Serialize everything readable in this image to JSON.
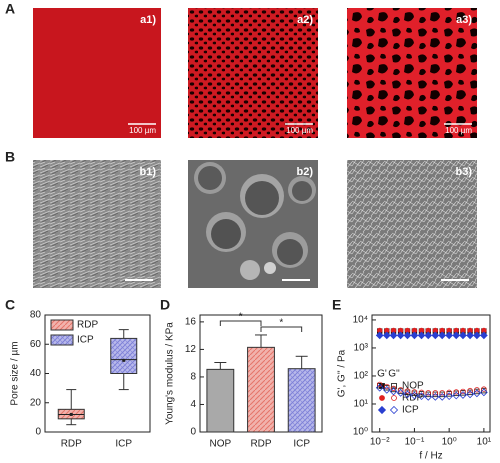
{
  "figure": {
    "panel_labels": [
      "A",
      "B"
    ],
    "images": [
      {
        "label": "a1)",
        "scale": "100 µm"
      },
      {
        "label": "a2)",
        "scale": "100 µm"
      },
      {
        "label": "a3)",
        "scale": "100 µm"
      },
      {
        "label": "b1)"
      },
      {
        "label": "b2)"
      },
      {
        "label": "b3)"
      }
    ]
  },
  "chart_data": [
    {
      "type": "box",
      "panel_label": "C",
      "ylabel": "Pore size / µm",
      "categories": [
        "RDP",
        "ICP"
      ],
      "colors": [
        "#e57368",
        "#7d80d8"
      ],
      "boxes": [
        {
          "min": 5,
          "q1": 9,
          "median": 12,
          "q3": 15.5,
          "max": 29,
          "mean": 12
        },
        {
          "min": 29,
          "q1": 40,
          "median": 49.5,
          "q3": 64,
          "max": 70,
          "mean": 49
        }
      ],
      "ylim": [
        0,
        80
      ],
      "yticks": [
        0,
        20,
        40,
        60,
        80
      ],
      "legend": "top-left"
    },
    {
      "type": "bar",
      "panel_label": "D",
      "ylabel": "Young's modulus / KPa",
      "categories": [
        "NOP",
        "RDP",
        "ICP"
      ],
      "colors": [
        "#a9a9a9",
        "#e57368",
        "#7d80d8"
      ],
      "values": [
        9.1,
        12.3,
        9.2
      ],
      "errors": [
        1.0,
        1.8,
        1.8
      ],
      "annotations": [
        "*",
        "*"
      ],
      "ylim": [
        0,
        17
      ],
      "yticks": [
        0,
        4,
        8,
        12,
        16
      ]
    },
    {
      "type": "scatter",
      "panel_label": "E",
      "ylabel": "G', G'' / Pa",
      "xlabel": "f / Hz",
      "log_x": true,
      "log_y": true,
      "legend_headers": [
        "G'",
        "G''"
      ],
      "x": [
        0.01,
        0.016,
        0.025,
        0.04,
        0.063,
        0.1,
        0.16,
        0.25,
        0.4,
        0.63,
        1,
        1.6,
        2.5,
        4,
        6.3,
        10
      ],
      "series": [
        {
          "name": "NOP",
          "color": "#111111",
          "marker": "square",
          "storage_values": [
            4000,
            4000,
            4000,
            4000,
            4000,
            4000,
            4000,
            4000,
            4000,
            4000,
            4000,
            4000,
            4000,
            4000,
            4000,
            4000
          ],
          "loss_values": [
            45,
            38,
            33,
            29,
            26,
            24,
            23,
            22,
            22,
            22,
            23,
            24,
            25,
            26,
            28,
            30
          ]
        },
        {
          "name": "RDP",
          "color": "#e02020",
          "marker": "circle",
          "storage_values": [
            4200,
            4200,
            4200,
            4200,
            4200,
            4200,
            4200,
            4200,
            4200,
            4200,
            4200,
            4200,
            4200,
            4200,
            4200,
            4200
          ],
          "loss_values": [
            50,
            42,
            36,
            32,
            29,
            27,
            26,
            25,
            25,
            25,
            26,
            27,
            28,
            30,
            32,
            34
          ]
        },
        {
          "name": "ICP",
          "color": "#2a3fd0",
          "marker": "diamond",
          "storage_values": [
            2800,
            2800,
            2800,
            2800,
            2800,
            2800,
            2800,
            2800,
            2800,
            2800,
            2800,
            2800,
            2800,
            2800,
            2800,
            2800
          ],
          "loss_values": [
            38,
            32,
            28,
            25,
            22,
            20,
            19,
            18,
            18,
            18,
            19,
            20,
            21,
            22,
            24,
            26
          ]
        }
      ],
      "xlim": [
        0.006,
        15
      ],
      "ylim": [
        1,
        15000
      ],
      "xticks": [
        {
          "value": 0.01,
          "label": "10⁻²"
        },
        {
          "value": 0.1,
          "label": "10⁻¹"
        },
        {
          "value": 1,
          "label": "10⁰"
        },
        {
          "value": 10,
          "label": "10¹"
        }
      ],
      "yticks": [
        {
          "value": 1,
          "label": "10⁰"
        },
        {
          "value": 10,
          "label": "10¹"
        },
        {
          "value": 100,
          "label": "10²"
        },
        {
          "value": 1000,
          "label": "10³"
        },
        {
          "value": 10000,
          "label": "10⁴"
        }
      ]
    }
  ]
}
